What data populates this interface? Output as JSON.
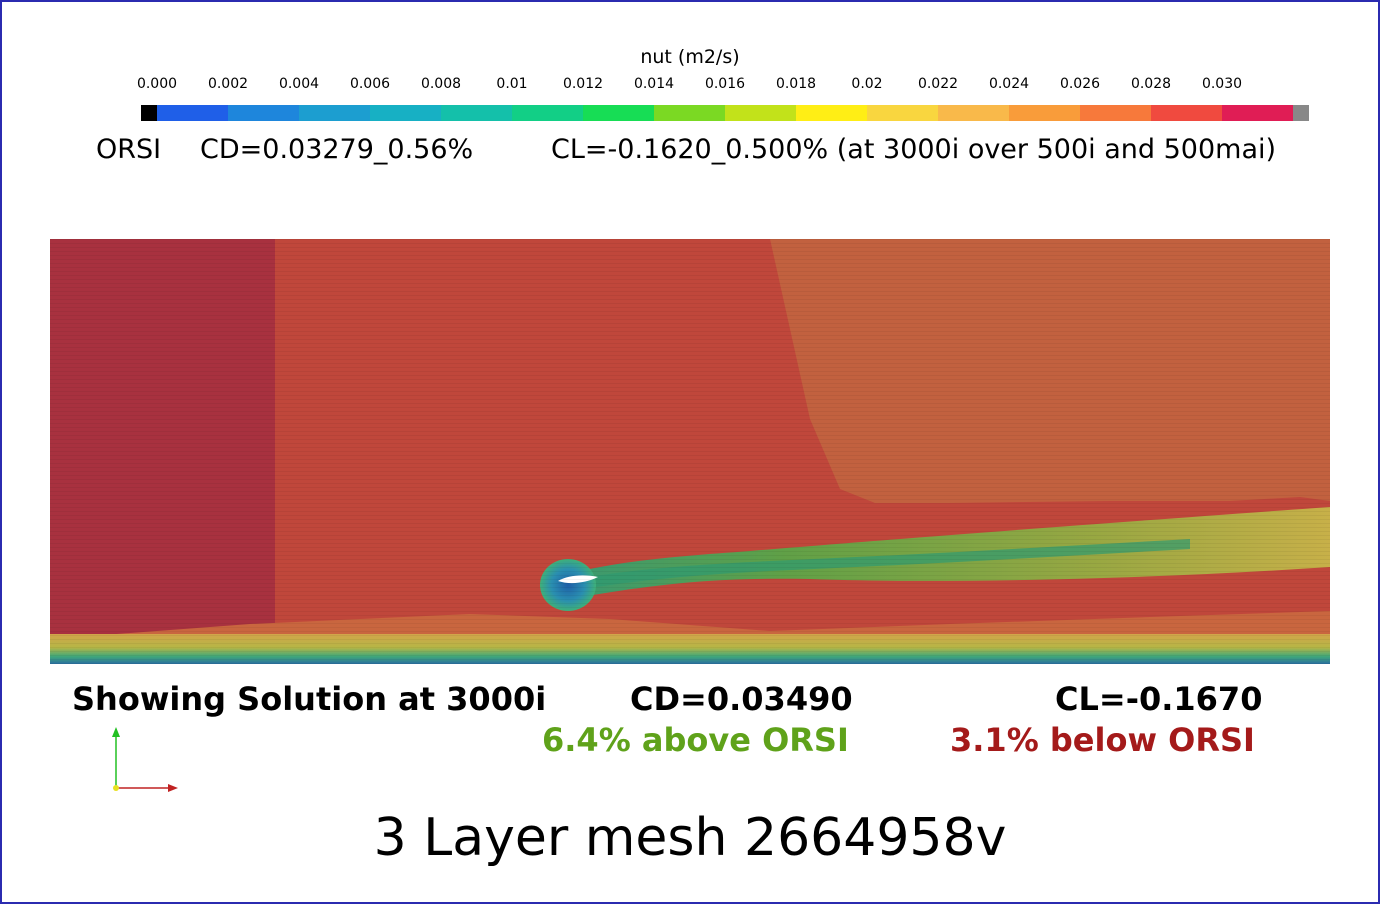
{
  "colorbar": {
    "title": "nut (m2/s)",
    "ticks": [
      "0.000",
      "0.002",
      "0.004",
      "0.006",
      "0.008",
      "0.01",
      "0.012",
      "0.014",
      "0.016",
      "0.018",
      "0.02",
      "0.022",
      "0.024",
      "0.026",
      "0.028",
      "0.030"
    ],
    "colors": [
      "#1f5fe8",
      "#1e86dc",
      "#1c9ed0",
      "#17b0c4",
      "#14c0aa",
      "#12cf86",
      "#17dd55",
      "#7bd923",
      "#c2e21a",
      "#ffee15",
      "#f9d63f",
      "#f9b94a",
      "#f99c3a",
      "#f7793b",
      "#f04a3f",
      "#e01d55"
    ],
    "below_color": "#000000",
    "above_color": "#888888"
  },
  "reference": {
    "label": "ORSI",
    "cd": "CD=0.03279_0.56%",
    "cl": "CL=-0.1620_0.500% (at 3000i over 500i and 500mai)"
  },
  "solution": {
    "label": "Showing Solution at 3000i",
    "cd": "CD=0.03490",
    "cd_delta": "6.4% above ORSI",
    "cd_delta_color": "#5fa21a",
    "cl": "CL=-0.1670",
    "cl_delta": "3.1% below ORSI",
    "cl_delta_color": "#a41a1a"
  },
  "footer": "3 Layer mesh 2664958v"
}
